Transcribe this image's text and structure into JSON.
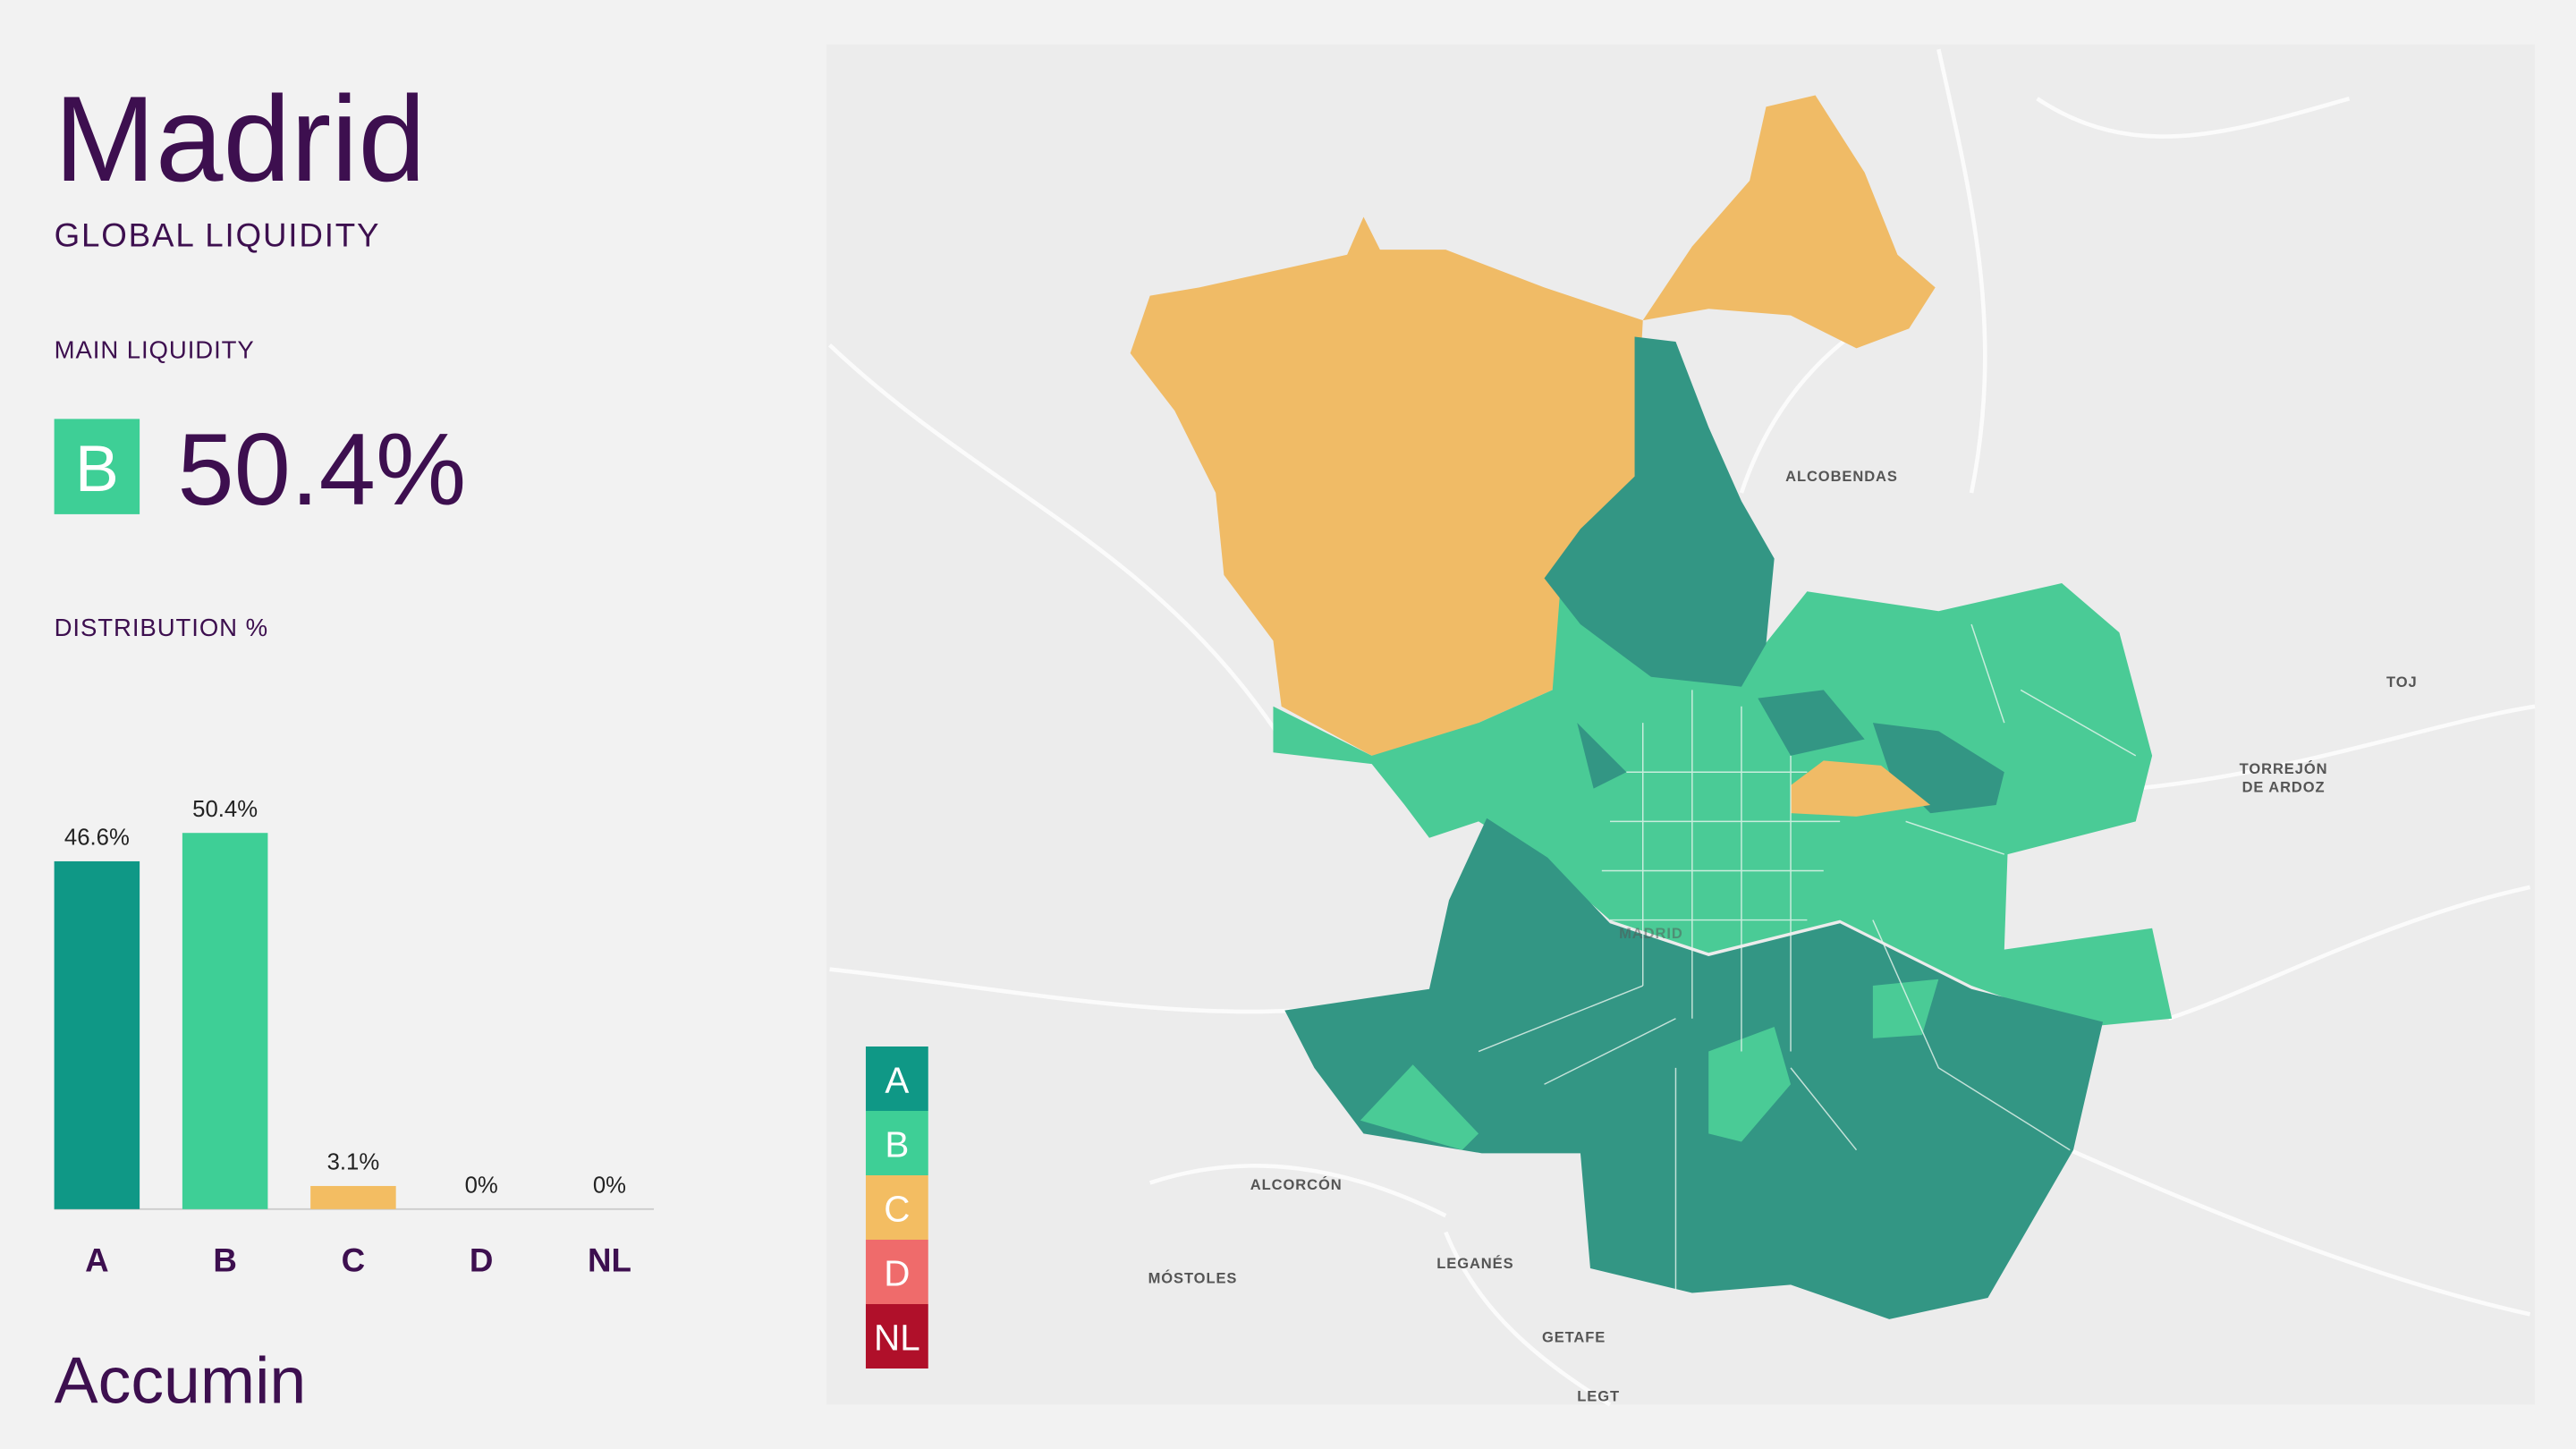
{
  "header": {
    "title": "Madrid",
    "subtitle": "GLOBAL LIQUIDITY"
  },
  "main_liquidity": {
    "label": "MAIN LIQUIDITY",
    "grade": "B",
    "grade_color": "#3ecf96",
    "value_label": "50.4%"
  },
  "chart_data": {
    "type": "bar",
    "title": "DISTRIBUTION %",
    "categories": [
      "A",
      "B",
      "C",
      "D",
      "NL"
    ],
    "values": [
      46.6,
      50.4,
      3.1,
      0,
      0
    ],
    "value_labels": [
      "46.6%",
      "50.4%",
      "3.1%",
      "0%",
      "0%"
    ],
    "colors": [
      "#0f9886",
      "#3ecf96",
      "#f3bd62",
      "#ef6b6b",
      "#b0102a"
    ]
  },
  "map": {
    "places": [
      "ALCOBENDAS",
      "TORREJÓN",
      "DE ARDOZ",
      "TOJ",
      "MADRID",
      "ALCORCÓN",
      "MÓSTOLES",
      "LEGANÉS",
      "GETAFE",
      "LEGT"
    ],
    "legend": [
      {
        "label": "A",
        "color": "#0f9886"
      },
      {
        "label": "B",
        "color": "#3ecf96"
      },
      {
        "label": "C",
        "color": "#f3bd62"
      },
      {
        "label": "D",
        "color": "#ef6b6b"
      },
      {
        "label": "NL",
        "color": "#b0102a"
      }
    ]
  },
  "logo": "Accumin"
}
